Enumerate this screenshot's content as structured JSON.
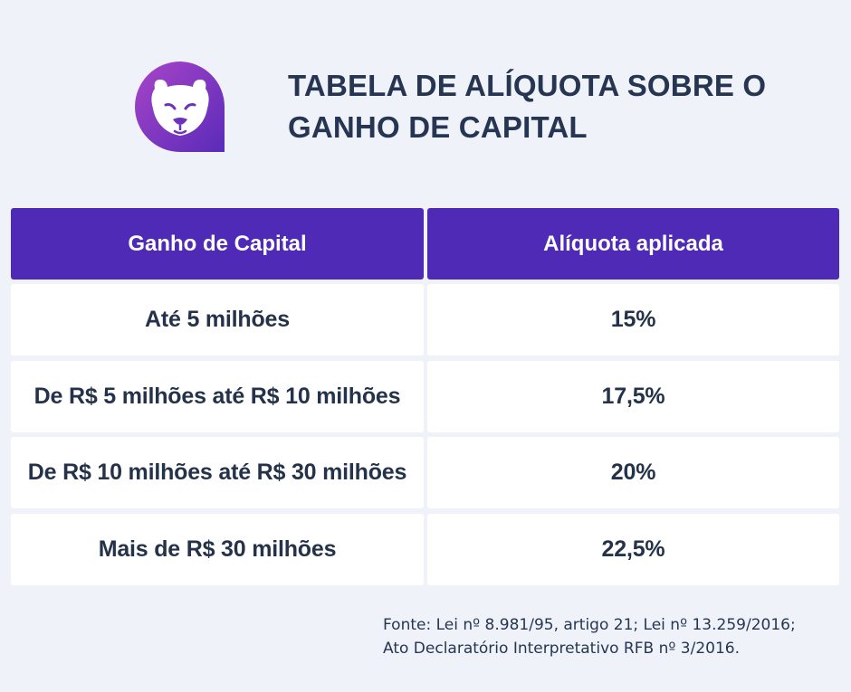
{
  "title": {
    "line1": "TABELA DE ALÍQUOTA SOBRE O",
    "line2": "GANHO DE CAPITAL"
  },
  "logo": {
    "icon": "panther-head-icon",
    "colors": [
      "#9c3fc7",
      "#5a2cb8"
    ]
  },
  "table": {
    "headers": [
      "Ganho de Capital",
      "Alíquota aplicada"
    ],
    "rows": [
      {
        "range": "Até 5 milhões",
        "rate": "15%"
      },
      {
        "range": "De R$ 5 milhões até R$ 10 milhões",
        "rate": "17,5%"
      },
      {
        "range": "De R$ 10 milhões até R$ 30 milhões",
        "rate": "20%"
      },
      {
        "range": "Mais de R$ 30 milhões",
        "rate": "22,5%"
      }
    ]
  },
  "source": {
    "line1": "Fonte: Lei nº 8.981/95, artigo 21; Lei nº 13.259/2016;",
    "line2": "Ato Declaratório Interpretativo RFB nº 3/2016."
  },
  "colors": {
    "background": "#eff3f9",
    "header": "#4f2ab6",
    "text": "#25334a"
  }
}
